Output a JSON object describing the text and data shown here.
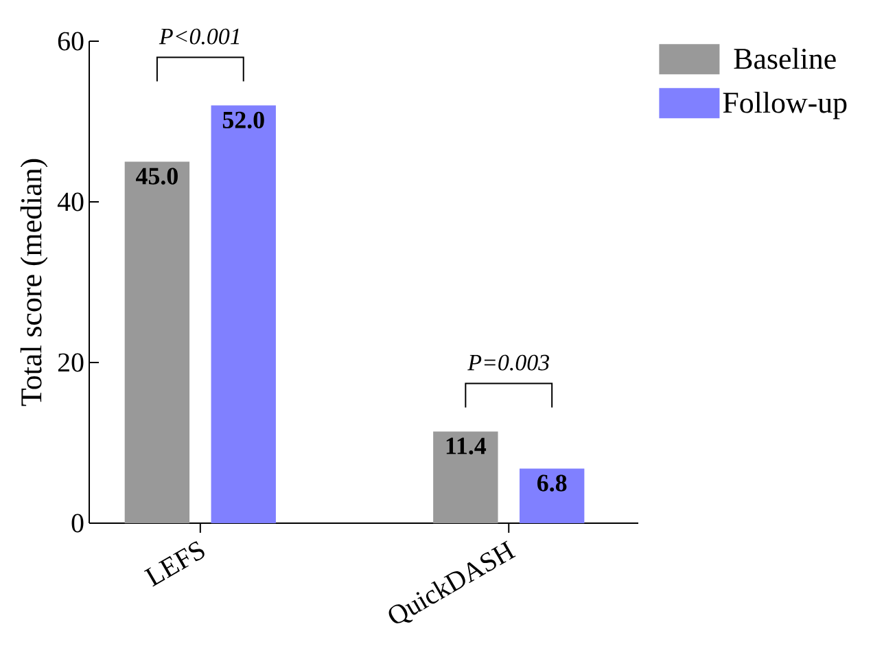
{
  "chart_data": {
    "type": "bar",
    "ylabel": "Total score (median)",
    "categories": [
      "LEFS",
      "QuickDASH"
    ],
    "series": [
      {
        "name": "Baseline",
        "color": "#999999",
        "values": [
          45.0,
          11.4
        ],
        "value_labels": [
          "45.0",
          "11.4"
        ]
      },
      {
        "name": "Follow-up",
        "color": "#8080ff",
        "values": [
          52.0,
          6.8
        ],
        "value_labels": [
          "52.0",
          "6.8"
        ]
      }
    ],
    "ylim": [
      0,
      60
    ],
    "yticks": [
      0,
      20,
      40,
      60
    ],
    "legend": "top right",
    "grid": false,
    "annotations": [
      "P<0.001",
      "P=0.003"
    ]
  }
}
